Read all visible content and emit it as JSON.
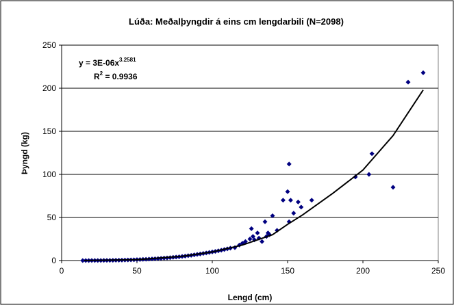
{
  "chart_data": {
    "type": "scatter",
    "title": "Lúða: Meðalþyngdir á eins cm lengdarbili (N=2098)",
    "x_label": "Lengd (cm)",
    "y_label": "Þyngd (kg)",
    "equation": {
      "text": "y = 3E-06x",
      "exponent": "3.2581"
    },
    "r_squared": {
      "symbol": "R",
      "exponent": "2",
      "text": " = 0.9936"
    },
    "xlim": [
      0,
      250
    ],
    "xticks": [
      0,
      50,
      100,
      150,
      200,
      250
    ],
    "ylim": [
      0,
      250
    ],
    "yticks": [
      0,
      50,
      100,
      150,
      200,
      250
    ],
    "grid": true,
    "series": [
      {
        "type": "scatter",
        "color": "#000080",
        "x": [
          14,
          16,
          18,
          20,
          22,
          24,
          26,
          28,
          30,
          32,
          34,
          36,
          38,
          40,
          42,
          44,
          46,
          48,
          50,
          52,
          54,
          56,
          58,
          60,
          62,
          64,
          66,
          68,
          70,
          72,
          74,
          76,
          78,
          80,
          82,
          84,
          86,
          88,
          90,
          92,
          94,
          96,
          98,
          100,
          102,
          104,
          106,
          108,
          110,
          112,
          115,
          118,
          120,
          122,
          125,
          126,
          127,
          128,
          130,
          131,
          133,
          135,
          136,
          137,
          138,
          140,
          143,
          147,
          150,
          151,
          151,
          152,
          154,
          157,
          159,
          166,
          195,
          204,
          206,
          220,
          230,
          240
        ],
        "values": [
          0.02,
          0.03,
          0.04,
          0.05,
          0.07,
          0.09,
          0.12,
          0.16,
          0.2,
          0.24,
          0.3,
          0.36,
          0.43,
          0.5,
          0.6,
          0.7,
          0.8,
          0.9,
          1.1,
          1.2,
          1.4,
          1.5,
          1.7,
          1.9,
          2.1,
          2.3,
          2.6,
          2.9,
          3.1,
          3.4,
          3.8,
          4.1,
          4.4,
          4.8,
          5.2,
          5.7,
          6.1,
          6.6,
          7.1,
          7.6,
          8.2,
          8.8,
          9.4,
          10,
          10.6,
          11.3,
          12,
          12.8,
          13.6,
          14.4,
          15,
          18,
          20,
          22,
          25,
          37,
          28,
          24,
          32,
          26,
          22,
          45,
          28,
          32,
          30,
          52,
          35,
          70,
          80,
          112,
          45,
          70,
          55,
          68,
          62,
          70,
          97,
          100,
          124,
          85,
          207,
          218
        ]
      },
      {
        "type": "line",
        "color": "#000000",
        "x": [
          15,
          50,
          80,
          100,
          120,
          140,
          150,
          160,
          180,
          200,
          220,
          240
        ],
        "values": [
          0,
          1,
          5,
          10,
          18,
          30,
          42,
          53,
          78,
          105,
          145,
          198
        ]
      }
    ]
  }
}
